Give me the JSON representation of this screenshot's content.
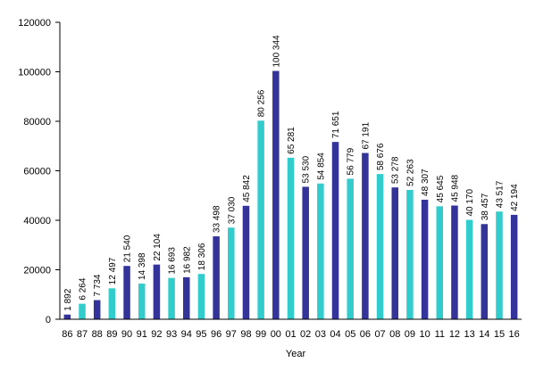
{
  "chart_data": {
    "type": "bar",
    "title": "",
    "xlabel": "Year",
    "ylabel": "",
    "ylim": [
      0,
      120000
    ],
    "yticks": [
      0,
      20000,
      40000,
      60000,
      80000,
      100000,
      120000
    ],
    "yticks_text": [
      "0",
      "20000",
      "40000",
      "60000",
      "80000",
      "100000",
      "120000"
    ],
    "grid": false,
    "legend": "none",
    "colors": {
      "dark": "#33339a",
      "light": "#33cccc",
      "axis": "#000000"
    },
    "categories": [
      "86",
      "87",
      "88",
      "89",
      "90",
      "91",
      "92",
      "93",
      "94",
      "95",
      "96",
      "97",
      "98",
      "99",
      "00",
      "01",
      "02",
      "03",
      "04",
      "05",
      "06",
      "07",
      "08",
      "09",
      "10",
      "11",
      "12",
      "13",
      "14",
      "15",
      "16"
    ],
    "values": [
      1892,
      6264,
      7734,
      12497,
      21540,
      14398,
      22104,
      16693,
      16982,
      18306,
      33498,
      37030,
      45842,
      80256,
      100344,
      65281,
      53530,
      54854,
      71651,
      56779,
      67191,
      58676,
      53278,
      52263,
      48307,
      45645,
      45948,
      40170,
      38457,
      43517,
      42194
    ],
    "value_labels": [
      "1 892",
      "6 264",
      "7 734",
      "12 497",
      "21 540",
      "14 398",
      "22 104",
      "16 693",
      "16 982",
      "18 306",
      "33 498",
      "37 030",
      "45 842",
      "80 256",
      "100 344",
      "65 281",
      "53 530",
      "54 854",
      "71 651",
      "56 779",
      "67 191",
      "58 676",
      "53 278",
      "52 263",
      "48 307",
      "45 645",
      "45 948",
      "40 170",
      "38 457",
      "43 517",
      "42 194"
    ],
    "bar_colors": [
      "dark",
      "light",
      "dark",
      "light",
      "dark",
      "light",
      "dark",
      "light",
      "dark",
      "light",
      "dark",
      "light",
      "dark",
      "light",
      "dark",
      "light",
      "dark",
      "light",
      "dark",
      "light",
      "dark",
      "light",
      "dark",
      "light",
      "dark",
      "light",
      "dark",
      "light",
      "dark",
      "light",
      "dark"
    ]
  }
}
